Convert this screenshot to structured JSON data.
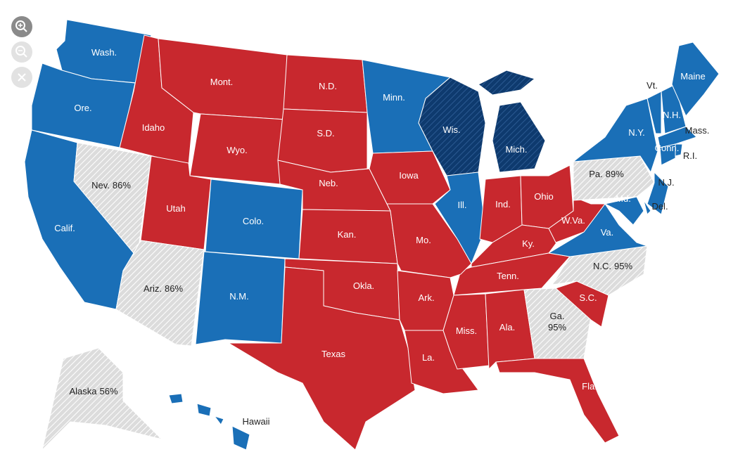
{
  "map": {
    "colors": {
      "dem": "#1a6fb7",
      "rep": "#c8282e",
      "flip": "#0e3a6e",
      "undecided": "#dcdcdc"
    },
    "states": [
      {
        "label": "Wash.",
        "status": "dem"
      },
      {
        "label": "Ore.",
        "status": "dem"
      },
      {
        "label": "Calif.",
        "status": "dem"
      },
      {
        "label": "Nev.",
        "reporting": "86%",
        "status": "undecided"
      },
      {
        "label": "Idaho",
        "status": "rep"
      },
      {
        "label": "Mont.",
        "status": "rep"
      },
      {
        "label": "Wyo.",
        "status": "rep"
      },
      {
        "label": "Utah",
        "status": "rep"
      },
      {
        "label": "Ariz.",
        "reporting": "86%",
        "status": "undecided"
      },
      {
        "label": "Colo.",
        "status": "dem"
      },
      {
        "label": "N.M.",
        "status": "dem"
      },
      {
        "label": "N.D.",
        "status": "rep"
      },
      {
        "label": "S.D.",
        "status": "rep"
      },
      {
        "label": "Neb.",
        "status": "rep"
      },
      {
        "label": "Kan.",
        "status": "rep"
      },
      {
        "label": "Okla.",
        "status": "rep"
      },
      {
        "label": "Texas",
        "status": "rep"
      },
      {
        "label": "Minn.",
        "status": "dem"
      },
      {
        "label": "Iowa",
        "status": "rep"
      },
      {
        "label": "Wis.",
        "status": "flip"
      },
      {
        "label": "Mich.",
        "status": "flip"
      },
      {
        "label": "Ill.",
        "status": "dem"
      },
      {
        "label": "Ind.",
        "status": "rep"
      },
      {
        "label": "Ohio",
        "status": "rep"
      },
      {
        "label": "Ky.",
        "status": "rep"
      },
      {
        "label": "Tenn.",
        "status": "rep"
      },
      {
        "label": "Mo.",
        "status": "rep"
      },
      {
        "label": "Ark.",
        "status": "rep"
      },
      {
        "label": "La.",
        "status": "rep"
      },
      {
        "label": "Miss.",
        "status": "rep"
      },
      {
        "label": "Ala.",
        "status": "rep"
      },
      {
        "label": "Ga.",
        "reporting": "95%",
        "status": "undecided"
      },
      {
        "label": "Fla.",
        "status": "rep"
      },
      {
        "label": "S.C.",
        "status": "rep"
      },
      {
        "label": "N.C.",
        "reporting": "95%",
        "status": "undecided"
      },
      {
        "label": "Va.",
        "status": "dem"
      },
      {
        "label": "W.Va.",
        "status": "rep"
      },
      {
        "label": "Pa.",
        "reporting": "89%",
        "status": "undecided"
      },
      {
        "label": "N.Y.",
        "status": "dem"
      },
      {
        "label": "N.J.",
        "status": "dem"
      },
      {
        "label": "Del.",
        "status": "dem"
      },
      {
        "label": "Md.",
        "status": "dem"
      },
      {
        "label": "Vt.",
        "status": "dem"
      },
      {
        "label": "N.H.",
        "status": "dem"
      },
      {
        "label": "Maine",
        "status": "dem"
      },
      {
        "label": "Mass.",
        "status": "dem"
      },
      {
        "label": "Conn.",
        "status": "dem"
      },
      {
        "label": "R.I.",
        "status": "dem"
      },
      {
        "label": "Alaska",
        "reporting": "56%",
        "status": "undecided"
      },
      {
        "label": "Hawaii",
        "status": "dem"
      }
    ]
  }
}
